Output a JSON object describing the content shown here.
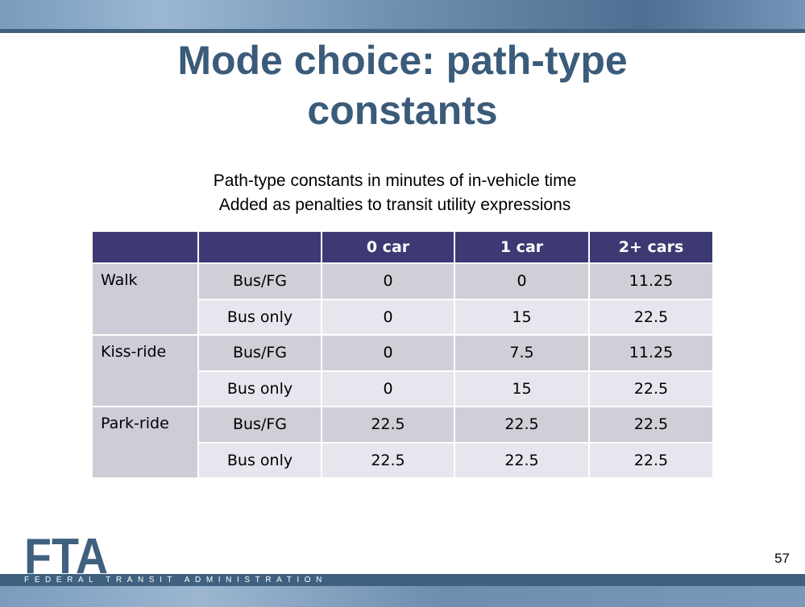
{
  "slide": {
    "title_line1": "Mode choice: path-type",
    "title_line2": "constants",
    "subtitle_line1": "Path-type constants in minutes of in-vehicle time",
    "subtitle_line2": "Added as penalties to transit utility expressions",
    "page_number": "57"
  },
  "table": {
    "headers": [
      "",
      "",
      "0 car",
      "1 car",
      "2+ cars"
    ],
    "groups": [
      {
        "label": "Walk",
        "rows": [
          {
            "type": "Bus/FG",
            "values": [
              "0",
              "0",
              "11.25"
            ]
          },
          {
            "type": "Bus only",
            "values": [
              "0",
              "15",
              "22.5"
            ]
          }
        ]
      },
      {
        "label": "Kiss-ride",
        "rows": [
          {
            "type": "Bus/FG",
            "values": [
              "0",
              "7.5",
              "11.25"
            ]
          },
          {
            "type": "Bus only",
            "values": [
              "0",
              "15",
              "22.5"
            ]
          }
        ]
      },
      {
        "label": "Park-ride",
        "rows": [
          {
            "type": "Bus/FG",
            "values": [
              "22.5",
              "22.5",
              "22.5"
            ]
          },
          {
            "type": "Bus only",
            "values": [
              "22.5",
              "22.5",
              "22.5"
            ]
          }
        ]
      }
    ]
  },
  "footer": {
    "logo_text": "FTA",
    "agency": "FEDERAL TRANSIT ADMINISTRATION"
  },
  "colors": {
    "title": "#3b5b7a",
    "header_bg": "#3d3a73",
    "row_dark": "#cfcfd8",
    "row_light": "#e6e6ee",
    "band": "#3f607f"
  }
}
